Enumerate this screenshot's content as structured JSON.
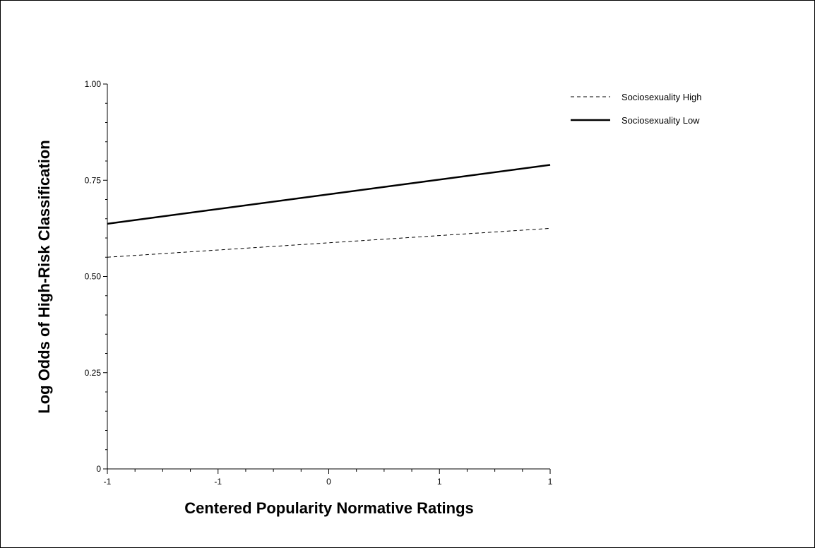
{
  "chart_data": {
    "type": "line",
    "title": "",
    "xlabel": "Centered Popularity Normative Ratings",
    "ylabel": "Log Odds of High-Risk Classification",
    "xlim": [
      -1,
      1
    ],
    "ylim": [
      0,
      1
    ],
    "x_tick_labels": [
      "-1",
      "-1",
      "0",
      "1",
      "1"
    ],
    "y_tick_labels": [
      "0",
      "0.25",
      "0.50",
      "0.75",
      "1.00"
    ],
    "y_ticks": [
      0,
      0.25,
      0.5,
      0.75,
      1.0
    ],
    "grid": false,
    "legend_position": "top-right",
    "series": [
      {
        "name": "Sociosexuality High",
        "x": [
          -1,
          1
        ],
        "y": [
          0.55,
          0.625
        ],
        "style": "dashed",
        "color": "#000000"
      },
      {
        "name": "Sociosexuality Low",
        "x": [
          -1,
          1
        ],
        "y": [
          0.637,
          0.79
        ],
        "style": "solid",
        "color": "#000000"
      }
    ]
  }
}
